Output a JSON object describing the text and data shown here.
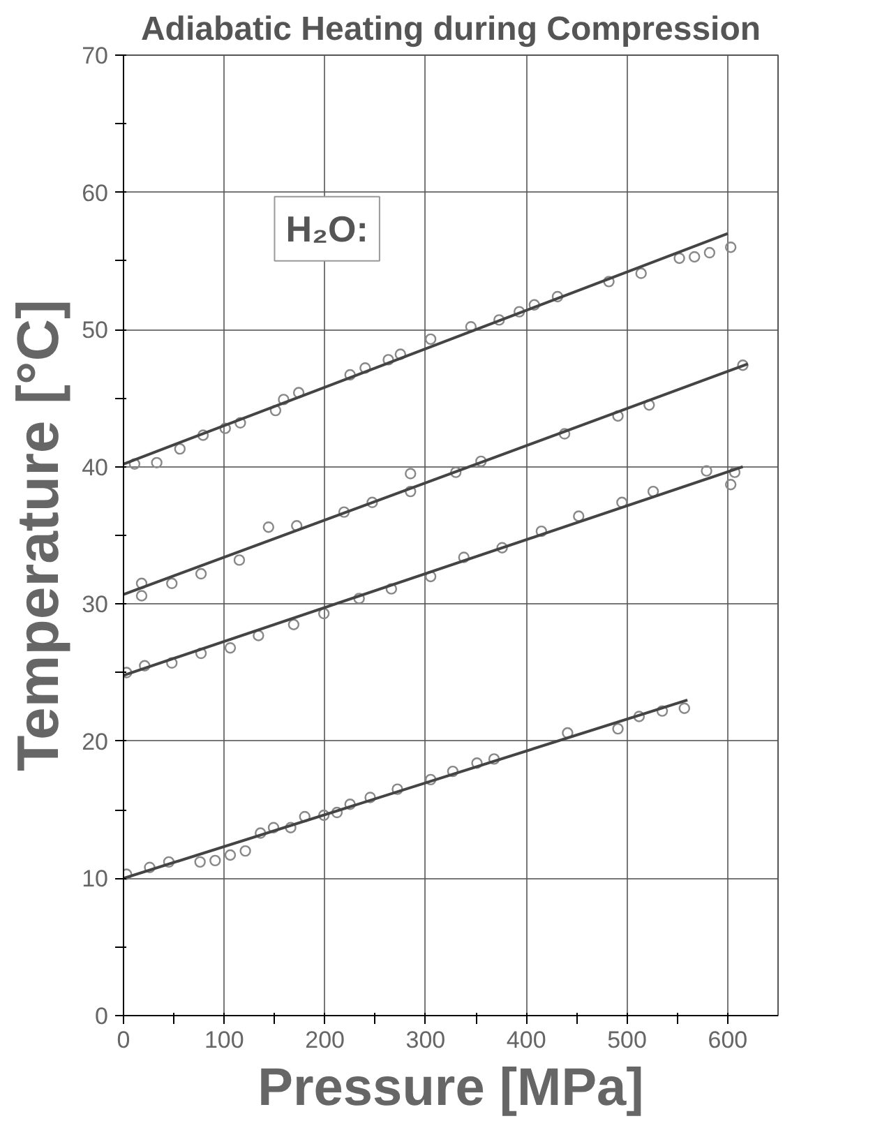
{
  "chart_data": {
    "type": "scatter",
    "title": "Adiabatic Heating during Compression",
    "xlabel": "Pressure [MPa]",
    "ylabel": "Temperature [°C]",
    "xlim": [
      0,
      650
    ],
    "ylim": [
      0,
      70
    ],
    "xticks": [
      0,
      {
        "value": 50,
        "label": null
      },
      100,
      {
        "value": 150,
        "label": null
      },
      200,
      {
        "value": 250,
        "label": null
      },
      300,
      {
        "value": 350,
        "label": null
      },
      400,
      {
        "value": 450,
        "label": null
      },
      500,
      {
        "value": 550,
        "label": null
      },
      600
    ],
    "yticks": [
      0,
      {
        "value": 5,
        "label": null
      },
      10,
      {
        "value": 15,
        "label": null
      },
      20,
      {
        "value": 25,
        "label": null
      },
      30,
      {
        "value": 35,
        "label": null
      },
      40,
      {
        "value": 45,
        "label": null
      },
      50,
      {
        "value": 55,
        "label": null
      },
      60,
      {
        "value": 65,
        "label": null
      },
      70
    ],
    "grid": true,
    "marker": "circle",
    "annotations": [
      "H₂O:"
    ],
    "series": [
      {
        "color": "#888888",
        "x": [
          11,
          33,
          56,
          79,
          101,
          116,
          151,
          159,
          174,
          225,
          240,
          263,
          275,
          305,
          345,
          373,
          393,
          408,
          431,
          482,
          514,
          552,
          567,
          582,
          603
        ],
        "values": [
          40.2,
          40.3,
          41.3,
          42.3,
          42.8,
          43.2,
          44.1,
          44.9,
          45.4,
          46.7,
          47.2,
          47.8,
          48.2,
          49.3,
          50.2,
          50.7,
          51.3,
          51.8,
          52.4,
          53.5,
          54.1,
          55.2,
          55.3,
          55.6,
          56.0
        ]
      },
      {
        "color": "#888888",
        "x": [
          18,
          18,
          48,
          77,
          115,
          144,
          172,
          219,
          247,
          285,
          285,
          330,
          355,
          438,
          491,
          522,
          615
        ],
        "values": [
          31.5,
          30.6,
          31.5,
          32.2,
          33.2,
          35.6,
          35.7,
          36.7,
          37.4,
          38.2,
          39.5,
          39.6,
          40.4,
          42.4,
          43.7,
          44.5,
          47.4
        ]
      },
      {
        "color": "#888888",
        "x": [
          3,
          21,
          48,
          77,
          106,
          134,
          169,
          199,
          234,
          266,
          305,
          338,
          376,
          415,
          452,
          495,
          526,
          579,
          603,
          607
        ],
        "values": [
          25.0,
          25.5,
          25.7,
          26.4,
          26.8,
          27.7,
          28.5,
          29.3,
          30.4,
          31.1,
          32.0,
          33.4,
          34.1,
          35.3,
          36.4,
          37.4,
          38.2,
          39.7,
          38.7,
          39.6
        ]
      },
      {
        "color": "#888888",
        "x": [
          3,
          26,
          45,
          76,
          91,
          106,
          121,
          136,
          149,
          166,
          180,
          199,
          212,
          225,
          245,
          272,
          305,
          327,
          351,
          368,
          441,
          491,
          512,
          535,
          557
        ],
        "values": [
          10.3,
          10.8,
          11.2,
          11.2,
          11.3,
          11.7,
          12.0,
          13.3,
          13.7,
          13.7,
          14.5,
          14.6,
          14.8,
          15.4,
          15.9,
          16.5,
          17.2,
          17.8,
          18.4,
          18.7,
          20.6,
          20.9,
          21.8,
          22.2,
          22.4
        ]
      },
      {
        "type": "line",
        "marker": "none",
        "color": "#444444",
        "x": [
          0,
          600
        ],
        "values": [
          40.2,
          57.0
        ]
      },
      {
        "type": "line",
        "marker": "none",
        "color": "#444444",
        "x": [
          0,
          620
        ],
        "values": [
          30.7,
          47.5
        ]
      },
      {
        "type": "line",
        "marker": "none",
        "color": "#444444",
        "x": [
          0,
          615
        ],
        "values": [
          24.8,
          40.0
        ]
      },
      {
        "type": "line",
        "marker": "none",
        "color": "#444444",
        "x": [
          0,
          560
        ],
        "values": [
          10.0,
          23.0
        ]
      }
    ]
  }
}
